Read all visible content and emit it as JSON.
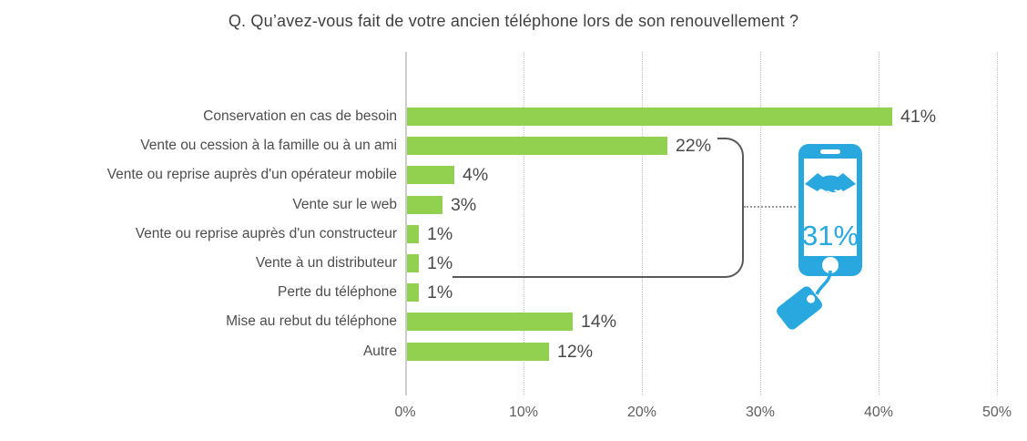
{
  "chart_data": {
    "type": "bar",
    "orientation": "horizontal",
    "title": "Q. Qu’avez-vous fait de votre ancien téléphone lors de son renouvellement ?",
    "categories": [
      "Conservation en cas de besoin",
      "Vente ou cession à la famille ou à un ami",
      "Vente ou reprise auprès d'un opérateur mobile",
      "Vente sur le web",
      "Vente ou reprise auprès d'un constructeur",
      "Vente à un distributeur",
      "Perte du téléphone",
      "Mise au rebut du téléphone",
      "Autre"
    ],
    "values": [
      41,
      22,
      4,
      3,
      1,
      1,
      1,
      14,
      12
    ],
    "value_labels": [
      "41%",
      "22%",
      "4%",
      "3%",
      "1%",
      "1%",
      "1%",
      "14%",
      "12%"
    ],
    "xlabel": "",
    "ylabel": "",
    "xlim": [
      0,
      50
    ],
    "x_ticks": [
      "0%",
      "10%",
      "20%",
      "30%",
      "40%",
      "50%"
    ],
    "grid": "vertical-dotted",
    "legend": "none",
    "bar_color": "#92d04f"
  },
  "annotation": {
    "group_label": "31%",
    "grouped_categories": [
      "Vente ou cession à la famille ou à un ami",
      "Vente ou reprise auprès d'un opérateur mobile",
      "Vente sur le web",
      "Vente ou reprise auprès d'un constructeur",
      "Vente à un distributeur"
    ],
    "icon": "phone-handshake-price-tag-icon",
    "icon_color": "#29a8e0",
    "bracket_color": "#595959"
  },
  "colors": {
    "bar": "#92d04f",
    "accent_blue": "#29a8e0",
    "text": "#4d4d4d",
    "grid": "#c3c3c3"
  }
}
